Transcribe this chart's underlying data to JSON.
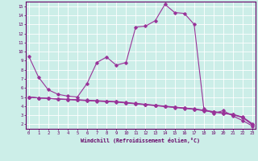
{
  "xlabel": "Windchill (Refroidissement éolien,°C)",
  "background_color": "#cceee8",
  "line_color": "#993399",
  "grid_color": "#aadddd",
  "x": [
    0,
    1,
    2,
    3,
    4,
    5,
    6,
    7,
    8,
    9,
    10,
    11,
    12,
    13,
    14,
    15,
    16,
    17,
    18,
    19,
    20,
    21,
    22,
    23
  ],
  "line_main": [
    9.5,
    7.2,
    5.8,
    5.3,
    5.1,
    5.0,
    6.5,
    8.8,
    9.4,
    8.5,
    8.8,
    12.7,
    12.8,
    13.4,
    15.2,
    14.3,
    14.2,
    13.0,
    3.7,
    3.2,
    3.5,
    2.9,
    2.4,
    1.8
  ],
  "line_a": [
    5.0,
    4.9,
    4.85,
    4.8,
    4.75,
    4.7,
    4.65,
    4.6,
    4.55,
    4.5,
    4.4,
    4.3,
    4.2,
    4.1,
    4.0,
    3.9,
    3.8,
    3.7,
    3.55,
    3.4,
    3.25,
    3.1,
    2.8,
    2.05
  ],
  "line_b": [
    5.0,
    4.9,
    4.85,
    4.78,
    4.73,
    4.68,
    4.62,
    4.57,
    4.52,
    4.47,
    4.37,
    4.27,
    4.17,
    4.07,
    3.97,
    3.87,
    3.77,
    3.67,
    3.52,
    3.37,
    3.22,
    3.07,
    2.75,
    1.98
  ],
  "line_c": [
    5.0,
    4.9,
    4.85,
    4.76,
    4.71,
    4.66,
    4.59,
    4.54,
    4.49,
    4.44,
    4.34,
    4.24,
    4.14,
    4.04,
    3.94,
    3.84,
    3.74,
    3.64,
    3.49,
    3.34,
    3.19,
    3.04,
    2.72,
    1.92
  ],
  "ylim_min": 1.5,
  "ylim_max": 15.5,
  "xlim_min": -0.3,
  "xlim_max": 23.3,
  "yticks": [
    2,
    3,
    4,
    5,
    6,
    7,
    8,
    9,
    10,
    11,
    12,
    13,
    14,
    15
  ],
  "xticks": [
    0,
    1,
    2,
    3,
    4,
    5,
    6,
    7,
    8,
    9,
    10,
    11,
    12,
    13,
    14,
    15,
    16,
    17,
    18,
    19,
    20,
    21,
    22,
    23
  ]
}
